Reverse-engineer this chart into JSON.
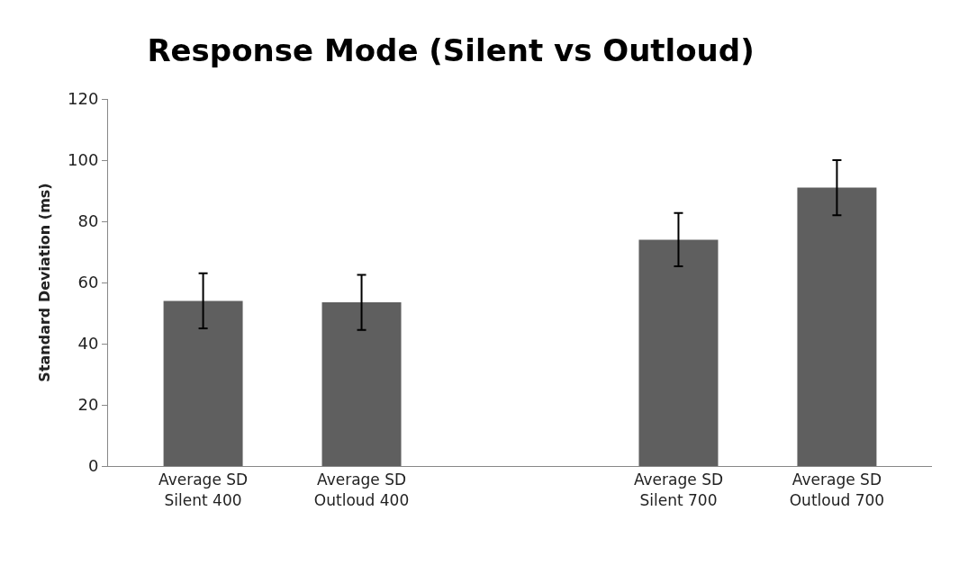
{
  "chart_data": {
    "type": "bar",
    "title": "Response Mode (Silent vs Outloud)",
    "ylabel": "Standard Deviation (ms)",
    "categories": [
      "Average SD\nSilent 400",
      "Average SD\nOutloud 400",
      null,
      "Average SD\nSilent 700",
      "Average SD\nOutloud 700"
    ],
    "values": [
      54,
      53.5,
      null,
      74,
      91
    ],
    "errors": [
      9,
      9,
      null,
      8.7,
      9
    ],
    "color": "#5f5f5f",
    "ylim": [
      0,
      120
    ],
    "yticks": [
      0,
      20,
      40,
      60,
      80,
      100,
      120
    ],
    "grid": false
  }
}
